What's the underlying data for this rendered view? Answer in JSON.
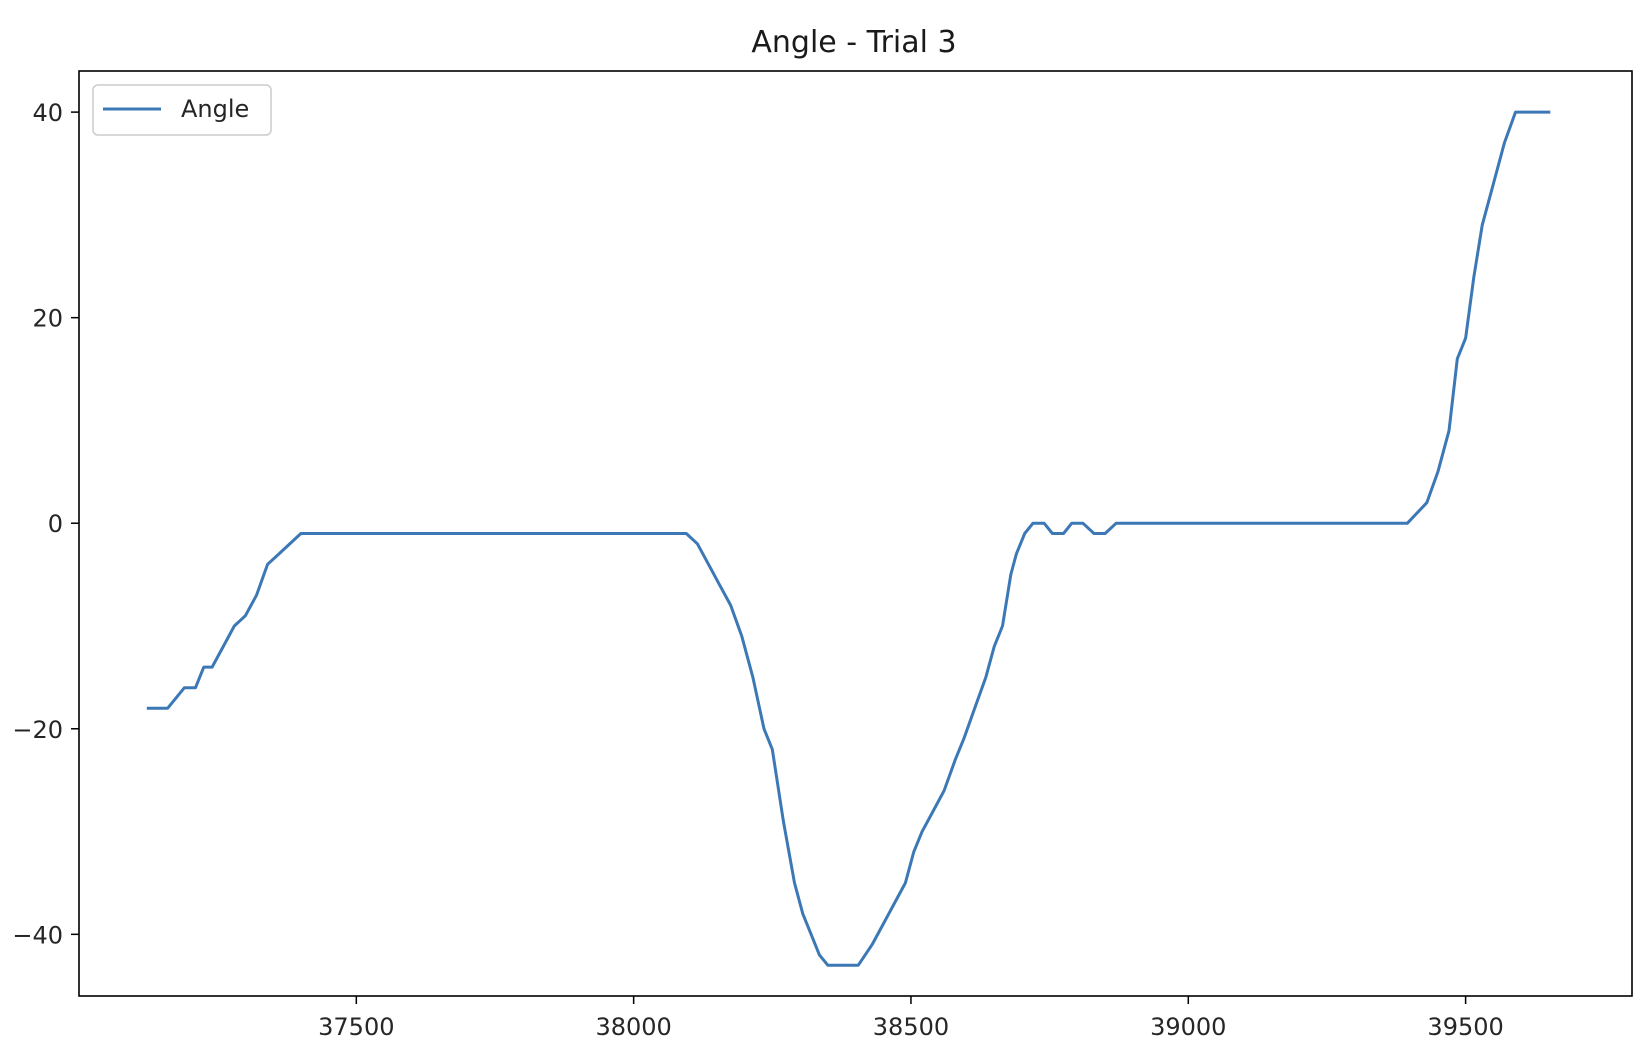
{
  "chart_data": {
    "type": "line",
    "title": "Angle - Trial 3",
    "xlabel": "",
    "ylabel": "",
    "xlim": [
      37000,
      39800
    ],
    "ylim": [
      -46,
      44
    ],
    "grid": false,
    "legend_position": "top-left",
    "x_ticks": [
      37500,
      38000,
      38500,
      39000,
      39500
    ],
    "x_tick_labels": [
      "37500",
      "38000",
      "38500",
      "39000",
      "39500"
    ],
    "y_ticks": [
      -40,
      -20,
      0,
      20,
      40
    ],
    "y_tick_labels": [
      "−40",
      "−20",
      "0",
      "20",
      "40"
    ],
    "series": [
      {
        "name": "Angle",
        "color": "#3b78b5",
        "x": [
          37125,
          37160,
          37190,
          37210,
          37225,
          37240,
          37260,
          37280,
          37300,
          37320,
          37340,
          37360,
          37400,
          37500,
          37600,
          37700,
          37800,
          37900,
          38000,
          38050,
          38095,
          38115,
          38135,
          38155,
          38175,
          38195,
          38215,
          38235,
          38250,
          38270,
          38290,
          38305,
          38320,
          38335,
          38350,
          38370,
          38405,
          38430,
          38450,
          38470,
          38490,
          38505,
          38520,
          38540,
          38560,
          38580,
          38595,
          38615,
          38635,
          38650,
          38665,
          38680,
          38690,
          38705,
          38720,
          38740,
          38755,
          38775,
          38790,
          38810,
          38830,
          38850,
          38870,
          38885,
          38905,
          39000,
          39100,
          39200,
          39300,
          39395,
          39430,
          39450,
          39470,
          39485,
          39500,
          39515,
          39530,
          39550,
          39570,
          39590,
          39605,
          39620,
          39650
        ],
        "values": [
          -18,
          -18,
          -16,
          -16,
          -14,
          -14,
          -12,
          -10,
          -9,
          -7,
          -4,
          -3,
          -1,
          -1,
          -1,
          -1,
          -1,
          -1,
          -1,
          -1,
          -1,
          -2,
          -4,
          -6,
          -8,
          -11,
          -15,
          -20,
          -22,
          -29,
          -35,
          -38,
          -40,
          -42,
          -43,
          -43,
          -43,
          -41,
          -39,
          -37,
          -35,
          -32,
          -30,
          -28,
          -26,
          -23,
          -21,
          -18,
          -15,
          -12,
          -10,
          -5,
          -3,
          -1,
          0,
          0,
          -1,
          -1,
          0,
          0,
          -1,
          -1,
          0,
          0,
          0,
          0,
          0,
          0,
          0,
          0,
          2,
          5,
          9,
          16,
          18,
          24,
          29,
          33,
          37,
          40,
          40,
          40,
          40
        ]
      }
    ]
  }
}
